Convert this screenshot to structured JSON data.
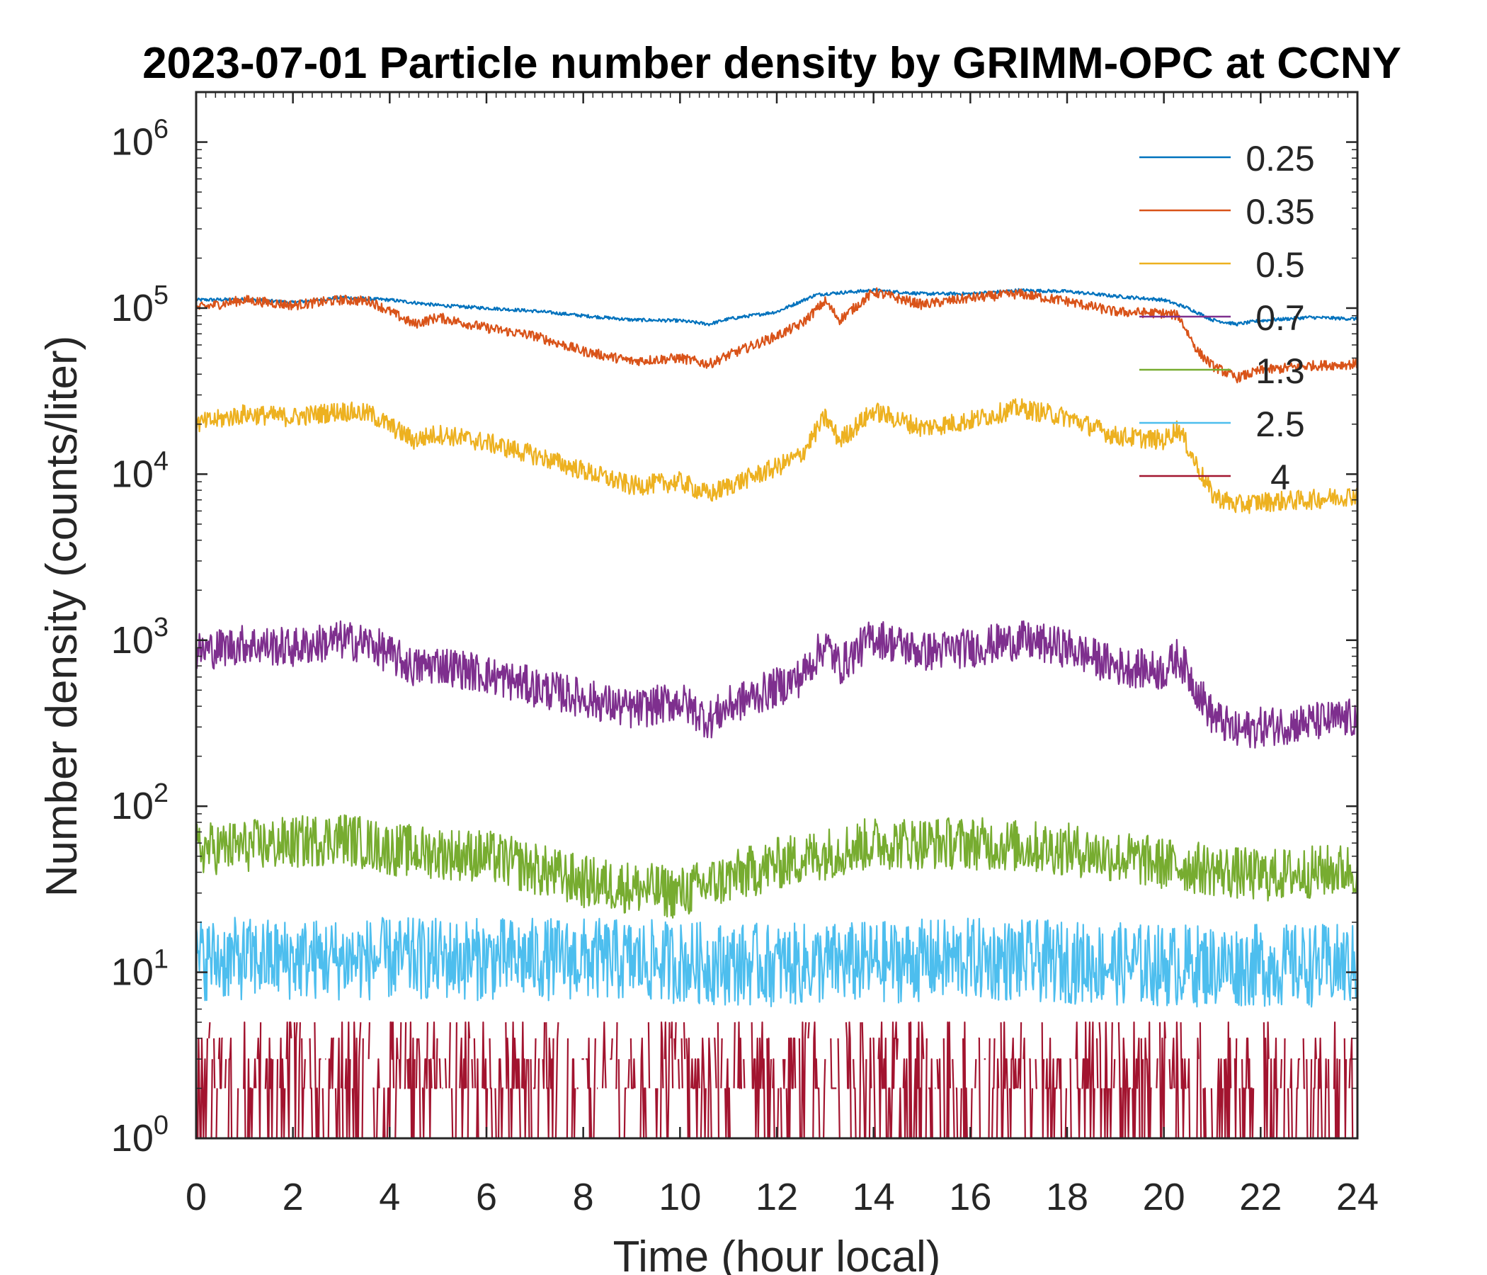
{
  "chart_data": {
    "type": "line",
    "title": "2023-07-01 Particle number density by GRIMM-OPC at CCNY",
    "xlabel": "Time (hour local)",
    "ylabel": "Number density (counts/liter)",
    "xlim": [
      0,
      24
    ],
    "ylim": [
      1,
      2000000
    ],
    "yscale": "log",
    "x_ticks": [
      "0",
      "2",
      "4",
      "6",
      "8",
      "10",
      "12",
      "14",
      "16",
      "18",
      "20",
      "22",
      "24"
    ],
    "y_ticks": [
      {
        "base": "10",
        "exp": "0",
        "value": 1
      },
      {
        "base": "10",
        "exp": "1",
        "value": 10
      },
      {
        "base": "10",
        "exp": "2",
        "value": 100
      },
      {
        "base": "10",
        "exp": "3",
        "value": 1000
      },
      {
        "base": "10",
        "exp": "4",
        "value": 10000
      },
      {
        "base": "10",
        "exp": "5",
        "value": 100000
      },
      {
        "base": "10",
        "exp": "6",
        "value": 1000000
      }
    ],
    "legend_position": "top-right",
    "series": [
      {
        "name": "0.25",
        "color": "#0072BD",
        "noise": 0.01,
        "points": [
          [
            0,
            112000
          ],
          [
            1,
            113000
          ],
          [
            2,
            108000
          ],
          [
            3,
            116000
          ],
          [
            4,
            112000
          ],
          [
            5,
            104000
          ],
          [
            6,
            100000
          ],
          [
            7,
            96000
          ],
          [
            8,
            90000
          ],
          [
            9,
            85000
          ],
          [
            10,
            84000
          ],
          [
            10.6,
            80000
          ],
          [
            11,
            86000
          ],
          [
            12,
            95000
          ],
          [
            12.8,
            120000
          ],
          [
            13,
            122000
          ],
          [
            14,
            128000
          ],
          [
            15,
            122000
          ],
          [
            16,
            122000
          ],
          [
            17,
            128000
          ],
          [
            18,
            126000
          ],
          [
            19,
            118000
          ],
          [
            20,
            112000
          ],
          [
            20.5,
            100000
          ],
          [
            21,
            85000
          ],
          [
            21.5,
            80000
          ],
          [
            22,
            84000
          ],
          [
            23,
            88000
          ],
          [
            24,
            86000
          ]
        ]
      },
      {
        "name": "0.35",
        "color": "#D95319",
        "noise": 0.03,
        "points": [
          [
            0,
            100000
          ],
          [
            1,
            112000
          ],
          [
            2,
            104000
          ],
          [
            3,
            112000
          ],
          [
            3.6,
            110000
          ],
          [
            4.5,
            80000
          ],
          [
            5,
            88000
          ],
          [
            6,
            76000
          ],
          [
            7,
            68000
          ],
          [
            8,
            55000
          ],
          [
            9,
            48000
          ],
          [
            10,
            50000
          ],
          [
            10.6,
            46000
          ],
          [
            11,
            52000
          ],
          [
            12,
            68000
          ],
          [
            12.5,
            80000
          ],
          [
            13,
            110000
          ],
          [
            13.3,
            85000
          ],
          [
            14,
            125000
          ],
          [
            15,
            105000
          ],
          [
            16,
            115000
          ],
          [
            17,
            122000
          ],
          [
            18,
            110000
          ],
          [
            19,
            95000
          ],
          [
            20,
            93000
          ],
          [
            20.3,
            90000
          ],
          [
            20.7,
            55000
          ],
          [
            21,
            45000
          ],
          [
            21.5,
            38000
          ],
          [
            22,
            42000
          ],
          [
            23,
            45000
          ],
          [
            24,
            46000
          ]
        ]
      },
      {
        "name": "0.5",
        "color": "#EDB120",
        "noise": 0.06,
        "points": [
          [
            0,
            20000
          ],
          [
            1,
            23000
          ],
          [
            2,
            22000
          ],
          [
            3,
            24000
          ],
          [
            3.6,
            23000
          ],
          [
            4.5,
            16000
          ],
          [
            5,
            17500
          ],
          [
            6,
            15500
          ],
          [
            7,
            13000
          ],
          [
            8,
            10500
          ],
          [
            9,
            8500
          ],
          [
            10,
            9000
          ],
          [
            10.6,
            7500
          ],
          [
            11,
            8500
          ],
          [
            12,
            11000
          ],
          [
            12.5,
            13000
          ],
          [
            13,
            22000
          ],
          [
            13.3,
            16000
          ],
          [
            14,
            24000
          ],
          [
            15,
            19000
          ],
          [
            16,
            21000
          ],
          [
            17,
            25000
          ],
          [
            18,
            22000
          ],
          [
            19,
            17000
          ],
          [
            20,
            16000
          ],
          [
            20.3,
            19000
          ],
          [
            20.7,
            11000
          ],
          [
            21,
            7500
          ],
          [
            21.5,
            6500
          ],
          [
            22,
            6800
          ],
          [
            23,
            7000
          ],
          [
            24,
            7500
          ]
        ]
      },
      {
        "name": "0.7",
        "color": "#7E2F8E",
        "noise": 0.12,
        "points": [
          [
            0,
            850
          ],
          [
            1,
            950
          ],
          [
            2,
            900
          ],
          [
            3,
            1000
          ],
          [
            3.6,
            950
          ],
          [
            4.5,
            680
          ],
          [
            5,
            720
          ],
          [
            6,
            620
          ],
          [
            7,
            520
          ],
          [
            8,
            450
          ],
          [
            9,
            380
          ],
          [
            10,
            430
          ],
          [
            10.6,
            330
          ],
          [
            11,
            400
          ],
          [
            12,
            520
          ],
          [
            12.5,
            600
          ],
          [
            13,
            950
          ],
          [
            13.3,
            700
          ],
          [
            14,
            1050
          ],
          [
            15,
            850
          ],
          [
            16,
            900
          ],
          [
            17,
            1000
          ],
          [
            18,
            900
          ],
          [
            19,
            700
          ],
          [
            20,
            650
          ],
          [
            20.3,
            800
          ],
          [
            20.7,
            500
          ],
          [
            21,
            350
          ],
          [
            21.5,
            280
          ],
          [
            22,
            300
          ],
          [
            23,
            320
          ],
          [
            24,
            340
          ]
        ]
      },
      {
        "name": "1.3",
        "color": "#77AC30",
        "noise": 0.16,
        "points": [
          [
            0,
            55
          ],
          [
            2,
            60
          ],
          [
            3,
            65
          ],
          [
            4,
            55
          ],
          [
            6,
            50
          ],
          [
            8,
            35
          ],
          [
            10,
            30
          ],
          [
            12,
            45
          ],
          [
            14,
            60
          ],
          [
            16,
            60
          ],
          [
            18,
            55
          ],
          [
            20,
            45
          ],
          [
            22,
            38
          ],
          [
            24,
            42
          ]
        ]
      },
      {
        "name": "2.5",
        "color": "#4DBEEE",
        "noise": 0.25,
        "points": [
          [
            0,
            12
          ],
          [
            4,
            12
          ],
          [
            8,
            12
          ],
          [
            12,
            11
          ],
          [
            16,
            12
          ],
          [
            20,
            11
          ],
          [
            24,
            11
          ]
        ]
      },
      {
        "name": "4",
        "color": "#A2142F",
        "noise": 0,
        "points": [
          [
            0,
            1.5
          ],
          [
            24,
            1.5
          ]
        ]
      }
    ]
  }
}
